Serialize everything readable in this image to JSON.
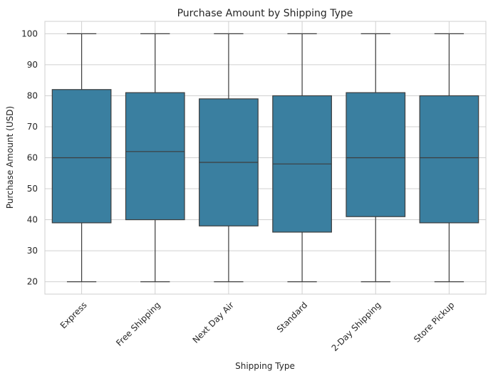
{
  "chart_data": {
    "type": "box",
    "title": "Purchase Amount by Shipping Type",
    "xlabel": "Shipping Type",
    "ylabel": "Purchase Amount (USD)",
    "ylim": [
      16,
      104
    ],
    "yticks": [
      20,
      30,
      40,
      50,
      60,
      70,
      80,
      90,
      100
    ],
    "grid": true,
    "categories": [
      "Express",
      "Free Shipping",
      "Next Day Air",
      "Standard",
      "2-Day Shipping",
      "Store Pickup"
    ],
    "boxes": [
      {
        "min": 20,
        "q1": 39,
        "median": 60,
        "q3": 82,
        "max": 100
      },
      {
        "min": 20,
        "q1": 40,
        "median": 62,
        "q3": 81,
        "max": 100
      },
      {
        "min": 20,
        "q1": 38,
        "median": 58.5,
        "q3": 79,
        "max": 100
      },
      {
        "min": 20,
        "q1": 36,
        "median": 58,
        "q3": 80,
        "max": 100
      },
      {
        "min": 20,
        "q1": 41,
        "median": 60,
        "q3": 81,
        "max": 100
      },
      {
        "min": 20,
        "q1": 39,
        "median": 60,
        "q3": 80,
        "max": 100
      }
    ],
    "colors": {
      "box_fill": "#3a7fa0",
      "line": "#3d3d3d",
      "grid": "#d0d0d0",
      "frame": "#cfcfcf"
    }
  }
}
